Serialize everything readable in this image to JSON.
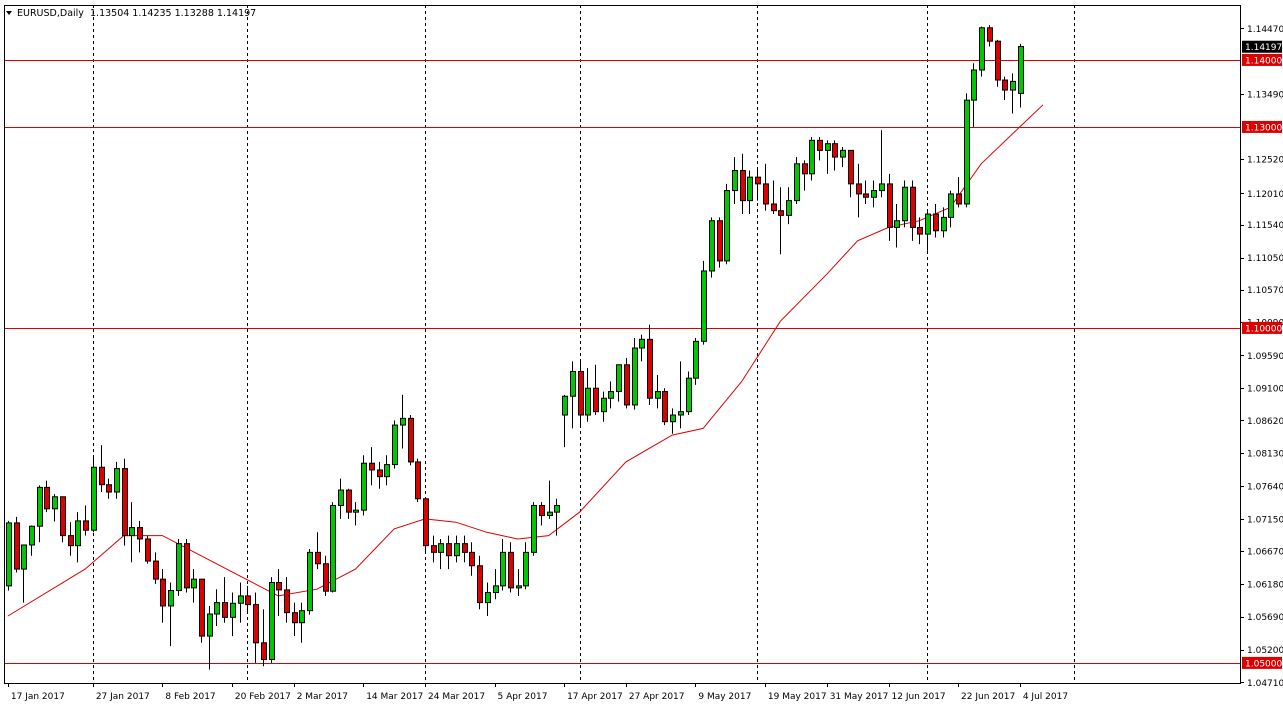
{
  "header": {
    "symbol": "EURUSD,Daily",
    "ohlc": "1.13504 1.14235 1.13288 1.14197"
  },
  "colors": {
    "background": "#ffffff",
    "bull": "#00c800",
    "bear": "#dc0000",
    "wick": "#000000",
    "moving_average": "#dc0000",
    "level_line": "#dc0000",
    "level_label_bg": "#dc0000",
    "price_label_bg": "#000000",
    "grid": "#000000"
  },
  "chart_data": {
    "type": "candlestick",
    "instrument": "EURUSD",
    "timeframe": "Daily",
    "title": "",
    "ylim": [
      1.047,
      1.1482
    ],
    "x_ticks": [
      "17 Jan 2017",
      "27 Jan 2017",
      "8 Feb 2017",
      "20 Feb 2017",
      "2 Mar 2017",
      "14 Mar 2017",
      "24 Mar 2017",
      "5 Apr 2017",
      "17 Apr 2017",
      "27 Apr 2017",
      "9 May 2017",
      "19 May 2017",
      "31 May 2017",
      "12 Jun 2017",
      "22 Jun 2017",
      "4 Jul 2017"
    ],
    "x_tick_index": [
      0,
      11,
      20,
      29,
      37,
      46,
      54,
      63,
      72,
      80,
      89,
      98,
      106,
      114,
      123,
      131
    ],
    "vertical_grid_index": [
      11,
      31,
      54,
      74,
      97,
      119,
      138
    ],
    "total_slots": 160,
    "y_ticks": [
      "1.14470",
      "1.13490",
      "1.12520",
      "1.12010",
      "1.11540",
      "1.11050",
      "1.10570",
      "1.10090",
      "1.09590",
      "1.09100",
      "1.08620",
      "1.08130",
      "1.07640",
      "1.07150",
      "1.06670",
      "1.06180",
      "1.05690",
      "1.05200",
      "1.04710"
    ],
    "levels": [
      {
        "value": 1.14,
        "label": "1.14000"
      },
      {
        "value": 1.13,
        "label": "1.13000"
      },
      {
        "value": 1.1,
        "label": "1.10000"
      },
      {
        "value": 1.05,
        "label": "1.05000"
      }
    ],
    "current_price": {
      "value": 1.14197,
      "label": "1.14197"
    },
    "candles": [
      [
        1.0615,
        1.0712,
        1.0608,
        1.0709
      ],
      [
        1.0709,
        1.0718,
        1.0635,
        1.064
      ],
      [
        1.064,
        1.0668,
        1.059,
        1.0676
      ],
      [
        1.0676,
        1.0705,
        1.066,
        1.0704
      ],
      [
        1.0704,
        1.0765,
        1.068,
        1.0762
      ],
      [
        1.0762,
        1.0772,
        1.0725,
        1.073
      ],
      [
        1.073,
        1.0752,
        1.0711,
        1.0748
      ],
      [
        1.0748,
        1.0748,
        1.068,
        1.069
      ],
      [
        1.069,
        1.071,
        1.066,
        1.0675
      ],
      [
        1.0675,
        1.0725,
        1.065,
        1.0712
      ],
      [
        1.0712,
        1.0735,
        1.069,
        1.0698
      ],
      [
        1.0698,
        1.081,
        1.0695,
        1.0792
      ],
      [
        1.0792,
        1.0825,
        1.0755,
        1.0766
      ],
      [
        1.0766,
        1.0775,
        1.0745,
        1.0755
      ],
      [
        1.0755,
        1.08,
        1.0745,
        1.079
      ],
      [
        1.079,
        1.0805,
        1.0675,
        1.069
      ],
      [
        1.069,
        1.074,
        1.065,
        1.0702
      ],
      [
        1.0702,
        1.0712,
        1.0665,
        1.0685
      ],
      [
        1.0685,
        1.069,
        1.0648,
        1.0652
      ],
      [
        1.0652,
        1.0665,
        1.0618,
        1.0625
      ],
      [
        1.0625,
        1.064,
        1.056,
        1.0585
      ],
      [
        1.0585,
        1.062,
        1.0525,
        1.0608
      ],
      [
        1.0608,
        1.0685,
        1.06,
        1.0678
      ],
      [
        1.0678,
        1.0685,
        1.0605,
        1.0612
      ],
      [
        1.0612,
        1.064,
        1.059,
        1.0625
      ],
      [
        1.0625,
        1.0625,
        1.053,
        1.054
      ],
      [
        1.054,
        1.0585,
        1.049,
        1.0573
      ],
      [
        1.0573,
        1.061,
        1.0555,
        1.059
      ],
      [
        1.059,
        1.0628,
        1.056,
        1.0568
      ],
      [
        1.0568,
        1.0605,
        1.054,
        1.0589
      ],
      [
        1.0589,
        1.062,
        1.056,
        1.06
      ],
      [
        1.06,
        1.0615,
        1.0575,
        1.0587
      ],
      [
        1.0587,
        1.0605,
        1.05,
        1.053
      ],
      [
        1.053,
        1.058,
        1.0495,
        1.0505
      ],
      [
        1.0505,
        1.0628,
        1.05,
        1.062
      ],
      [
        1.062,
        1.064,
        1.057,
        1.0609
      ],
      [
        1.0609,
        1.0628,
        1.056,
        1.0575
      ],
      [
        1.0575,
        1.059,
        1.054,
        1.056
      ],
      [
        1.056,
        1.059,
        1.053,
        1.0578
      ],
      [
        1.0578,
        1.067,
        1.0572,
        1.0665
      ],
      [
        1.0665,
        1.0695,
        1.064,
        1.0648
      ],
      [
        1.0648,
        1.066,
        1.06,
        1.0607
      ],
      [
        1.0607,
        1.074,
        1.0605,
        1.0735
      ],
      [
        1.0735,
        1.0775,
        1.0715,
        1.0758
      ],
      [
        1.0758,
        1.076,
        1.0715,
        1.0725
      ],
      [
        1.0725,
        1.074,
        1.0705,
        1.0728
      ],
      [
        1.0728,
        1.081,
        1.072,
        1.0798
      ],
      [
        1.0798,
        1.0822,
        1.0765,
        1.0788
      ],
      [
        1.0788,
        1.08,
        1.076,
        1.0778
      ],
      [
        1.0778,
        1.081,
        1.0765,
        1.0796
      ],
      [
        1.0796,
        1.0862,
        1.079,
        1.0855
      ],
      [
        1.0855,
        1.09,
        1.082,
        1.0865
      ],
      [
        1.0865,
        1.087,
        1.0795,
        1.08
      ],
      [
        1.08,
        1.0805,
        1.074,
        1.0745
      ],
      [
        1.0745,
        1.0745,
        1.0665,
        1.0675
      ],
      [
        1.0675,
        1.069,
        1.065,
        1.0665
      ],
      [
        1.0665,
        1.0685,
        1.064,
        1.0678
      ],
      [
        1.0678,
        1.069,
        1.064,
        1.066
      ],
      [
        1.066,
        1.069,
        1.065,
        1.0678
      ],
      [
        1.0678,
        1.069,
        1.065,
        1.0665
      ],
      [
        1.0665,
        1.068,
        1.063,
        1.0645
      ],
      [
        1.0645,
        1.066,
        1.058,
        1.059
      ],
      [
        1.059,
        1.062,
        1.057,
        1.0605
      ],
      [
        1.0605,
        1.064,
        1.0595,
        1.0615
      ],
      [
        1.0615,
        1.0685,
        1.0608,
        1.0665
      ],
      [
        1.0665,
        1.068,
        1.0605,
        1.0612
      ],
      [
        1.0612,
        1.064,
        1.06,
        1.0615
      ],
      [
        1.0615,
        1.068,
        1.061,
        1.0665
      ],
      [
        1.0665,
        1.074,
        1.066,
        1.0735
      ],
      [
        1.0735,
        1.074,
        1.0705,
        1.072
      ],
      [
        1.072,
        1.0772,
        1.0715,
        1.0725
      ],
      [
        1.0725,
        1.0745,
        1.069,
        1.0735
      ],
      [
        1.087,
        1.09,
        1.0822,
        1.0898
      ],
      [
        1.0898,
        1.095,
        1.085,
        1.0935
      ],
      [
        1.0935,
        1.095,
        1.0855,
        1.087
      ],
      [
        1.087,
        1.094,
        1.086,
        1.091
      ],
      [
        1.091,
        1.0945,
        1.087,
        1.0875
      ],
      [
        1.0875,
        1.0905,
        1.086,
        1.0895
      ],
      [
        1.0895,
        1.092,
        1.088,
        1.0905
      ],
      [
        1.0905,
        1.0945,
        1.089,
        1.0945
      ],
      [
        1.0945,
        1.0955,
        1.088,
        1.0885
      ],
      [
        1.0885,
        1.0985,
        1.0878,
        1.097
      ],
      [
        1.097,
        1.099,
        1.095,
        1.0983
      ],
      [
        1.0983,
        1.1005,
        1.0885,
        1.0895
      ],
      [
        1.0895,
        1.093,
        1.088,
        1.0905
      ],
      [
        1.0905,
        1.091,
        1.0855,
        1.086
      ],
      [
        1.086,
        1.088,
        1.0842,
        1.087
      ],
      [
        1.087,
        1.095,
        1.085,
        1.0875
      ],
      [
        1.0875,
        1.0935,
        1.087,
        1.0925
      ],
      [
        1.0925,
        1.0985,
        1.0915,
        1.098
      ],
      [
        1.098,
        1.11,
        1.0975,
        1.1085
      ],
      [
        1.1085,
        1.1165,
        1.1075,
        1.116
      ],
      [
        1.116,
        1.1165,
        1.109,
        1.11
      ],
      [
        1.11,
        1.1215,
        1.1095,
        1.1205
      ],
      [
        1.1205,
        1.1255,
        1.1185,
        1.1235
      ],
      [
        1.1235,
        1.126,
        1.117,
        1.119
      ],
      [
        1.119,
        1.1235,
        1.117,
        1.1225
      ],
      [
        1.1225,
        1.124,
        1.119,
        1.1215
      ],
      [
        1.1215,
        1.1245,
        1.1175,
        1.1185
      ],
      [
        1.1185,
        1.122,
        1.117,
        1.1175
      ],
      [
        1.1175,
        1.121,
        1.111,
        1.1168
      ],
      [
        1.1168,
        1.121,
        1.1155,
        1.119
      ],
      [
        1.119,
        1.1255,
        1.1185,
        1.1245
      ],
      [
        1.1245,
        1.125,
        1.1205,
        1.123
      ],
      [
        1.123,
        1.1285,
        1.122,
        1.128
      ],
      [
        1.128,
        1.1285,
        1.125,
        1.1265
      ],
      [
        1.1265,
        1.128,
        1.123,
        1.1275
      ],
      [
        1.1275,
        1.128,
        1.1235,
        1.1255
      ],
      [
        1.1255,
        1.127,
        1.124,
        1.1265
      ],
      [
        1.1265,
        1.1265,
        1.1195,
        1.1215
      ],
      [
        1.1215,
        1.1245,
        1.1165,
        1.12
      ],
      [
        1.12,
        1.122,
        1.1185,
        1.1195
      ],
      [
        1.1195,
        1.122,
        1.118,
        1.1205
      ],
      [
        1.1205,
        1.1295,
        1.1195,
        1.1215
      ],
      [
        1.1215,
        1.123,
        1.113,
        1.115
      ],
      [
        1.115,
        1.1185,
        1.112,
        1.116
      ],
      [
        1.116,
        1.122,
        1.115,
        1.121
      ],
      [
        1.121,
        1.122,
        1.113,
        1.115
      ],
      [
        1.115,
        1.1165,
        1.1125,
        1.114
      ],
      [
        1.114,
        1.1175,
        1.1115,
        1.117
      ],
      [
        1.117,
        1.1185,
        1.1135,
        1.1145
      ],
      [
        1.1145,
        1.118,
        1.1135,
        1.1165
      ],
      [
        1.1165,
        1.1205,
        1.115,
        1.12
      ],
      [
        1.12,
        1.1225,
        1.118,
        1.1185
      ],
      [
        1.1185,
        1.135,
        1.118,
        1.134
      ],
      [
        1.134,
        1.1395,
        1.13,
        1.1385
      ],
      [
        1.1385,
        1.145,
        1.1375,
        1.1448
      ],
      [
        1.1448,
        1.1452,
        1.142,
        1.1428
      ],
      [
        1.1428,
        1.143,
        1.136,
        1.137
      ],
      [
        1.137,
        1.1375,
        1.134,
        1.1355
      ],
      [
        1.1355,
        1.138,
        1.132,
        1.1368
      ],
      [
        1.135,
        1.1424,
        1.1329,
        1.142
      ]
    ],
    "moving_average": [
      [
        0,
        1.057
      ],
      [
        10,
        1.064
      ],
      [
        15,
        1.069
      ],
      [
        20,
        1.069
      ],
      [
        25,
        1.066
      ],
      [
        30,
        1.063
      ],
      [
        35,
        1.06
      ],
      [
        40,
        1.061
      ],
      [
        45,
        1.064
      ],
      [
        50,
        1.07
      ],
      [
        54,
        1.0715
      ],
      [
        58,
        1.071
      ],
      [
        62,
        1.0695
      ],
      [
        66,
        1.0685
      ],
      [
        70,
        1.069
      ],
      [
        74,
        1.0725
      ],
      [
        80,
        1.08
      ],
      [
        86,
        1.084
      ],
      [
        90,
        1.085
      ],
      [
        95,
        1.092
      ],
      [
        100,
        1.101
      ],
      [
        106,
        1.108
      ],
      [
        110,
        1.113
      ],
      [
        114,
        1.115
      ],
      [
        118,
        1.116
      ],
      [
        122,
        1.118
      ],
      [
        126,
        1.1245
      ],
      [
        131,
        1.13
      ],
      [
        134,
        1.1333
      ]
    ]
  }
}
